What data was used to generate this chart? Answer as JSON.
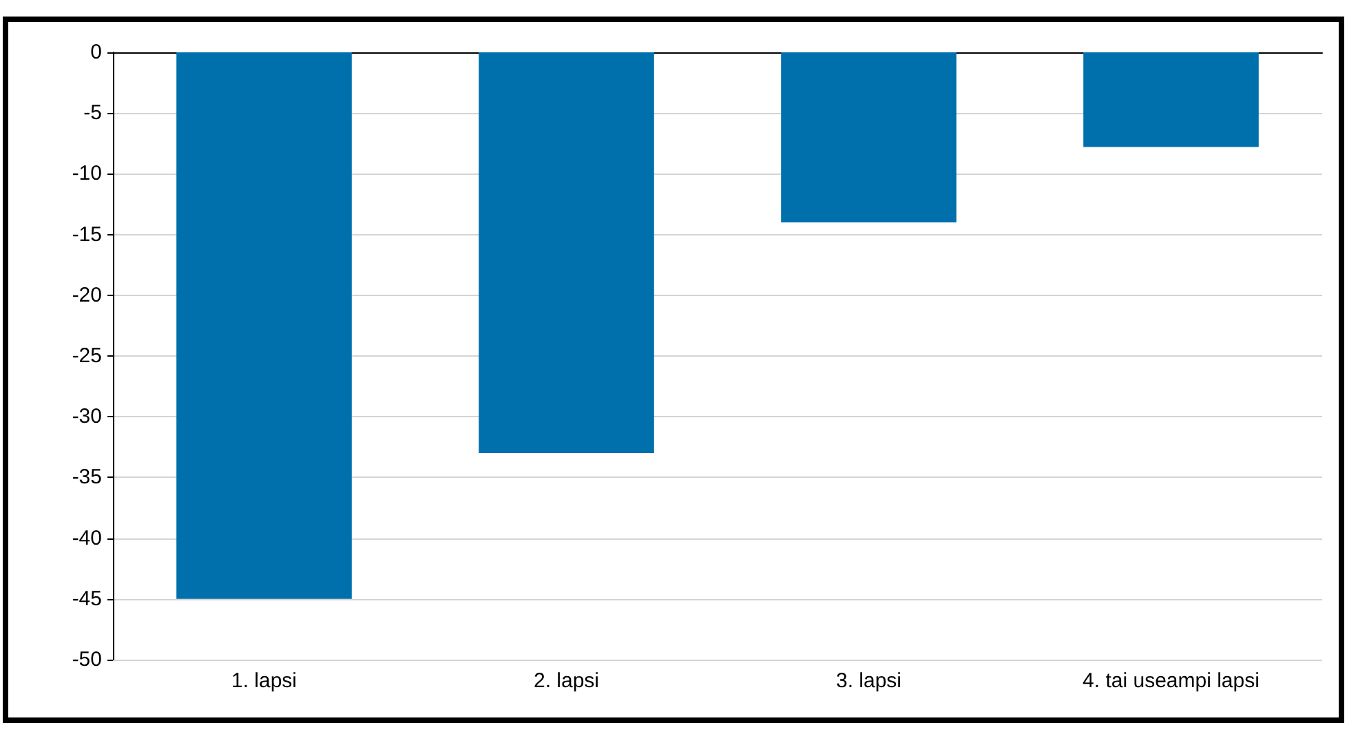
{
  "chart_data": {
    "type": "bar",
    "categories": [
      "1. lapsi",
      "2. lapsi",
      "3. lapsi",
      "4. tai useampi lapsi"
    ],
    "values": [
      -45,
      -33,
      -14,
      -7.8
    ],
    "color": "#0070ad",
    "ylim": [
      -50,
      0
    ],
    "yticks": [
      -50,
      -45,
      -40,
      -35,
      -30,
      -25,
      -20,
      -15,
      -10,
      -5,
      0
    ],
    "grid": "y"
  }
}
